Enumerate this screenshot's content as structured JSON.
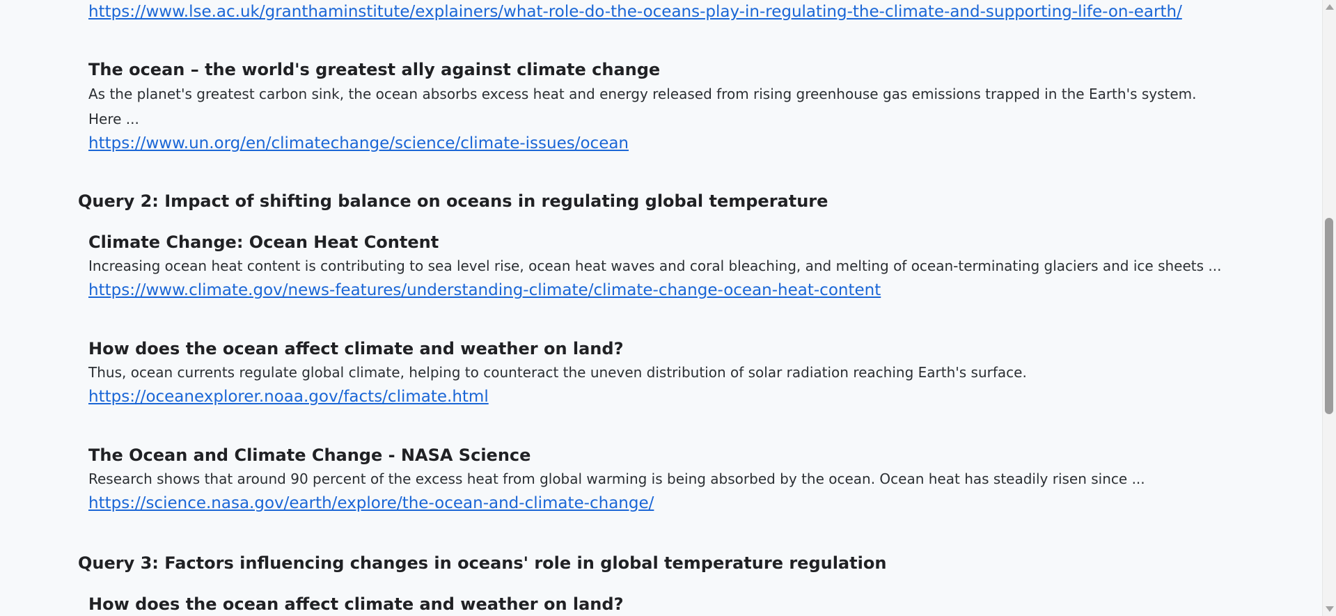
{
  "top_link": "https://www.lse.ac.uk/granthaminstitute/explainers/what-role-do-the-oceans-play-in-regulating-the-climate-and-supporting-life-on-earth/",
  "result_top": {
    "title": "The ocean – the world's greatest ally against climate change",
    "snippet": "As the planet's greatest carbon sink, the ocean absorbs excess heat and energy released from rising greenhouse gas emissions trapped in the Earth's system. Here ...",
    "url": "https://www.un.org/en/climatechange/science/climate-issues/ocean"
  },
  "query2": {
    "heading": "Query 2: Impact of shifting balance on oceans in regulating global temperature",
    "results": [
      {
        "title": "Climate Change: Ocean Heat Content",
        "snippet": "Increasing ocean heat content is contributing to sea level rise, ocean heat waves and coral bleaching, and melting of ocean-terminating glaciers and ice sheets ...",
        "url": "https://www.climate.gov/news-features/understanding-climate/climate-change-ocean-heat-content"
      },
      {
        "title": "How does the ocean affect climate and weather on land?",
        "snippet": "Thus, ocean currents regulate global climate, helping to counteract the uneven distribution of solar radiation reaching Earth's surface.",
        "url": "https://oceanexplorer.noaa.gov/facts/climate.html"
      },
      {
        "title": "The Ocean and Climate Change - NASA Science",
        "snippet": "Research shows that around 90 percent of the excess heat from global warming is being absorbed by the ocean. Ocean heat has steadily risen since ...",
        "url": "https://science.nasa.gov/earth/explore/the-ocean-and-climate-change/"
      }
    ]
  },
  "query3": {
    "heading": "Query 3: Factors influencing changes in oceans' role in global temperature regulation",
    "results": [
      {
        "title": "How does the ocean affect climate and weather on land?"
      }
    ]
  },
  "colors": {
    "background": "#f7f9fb",
    "link": "#1a66d6",
    "title": "#202124",
    "text": "#2b2f33",
    "scroll_thumb": "#9c9c9c"
  },
  "icons": [
    "scroll-up-arrow-icon",
    "scroll-down-arrow-icon"
  ]
}
